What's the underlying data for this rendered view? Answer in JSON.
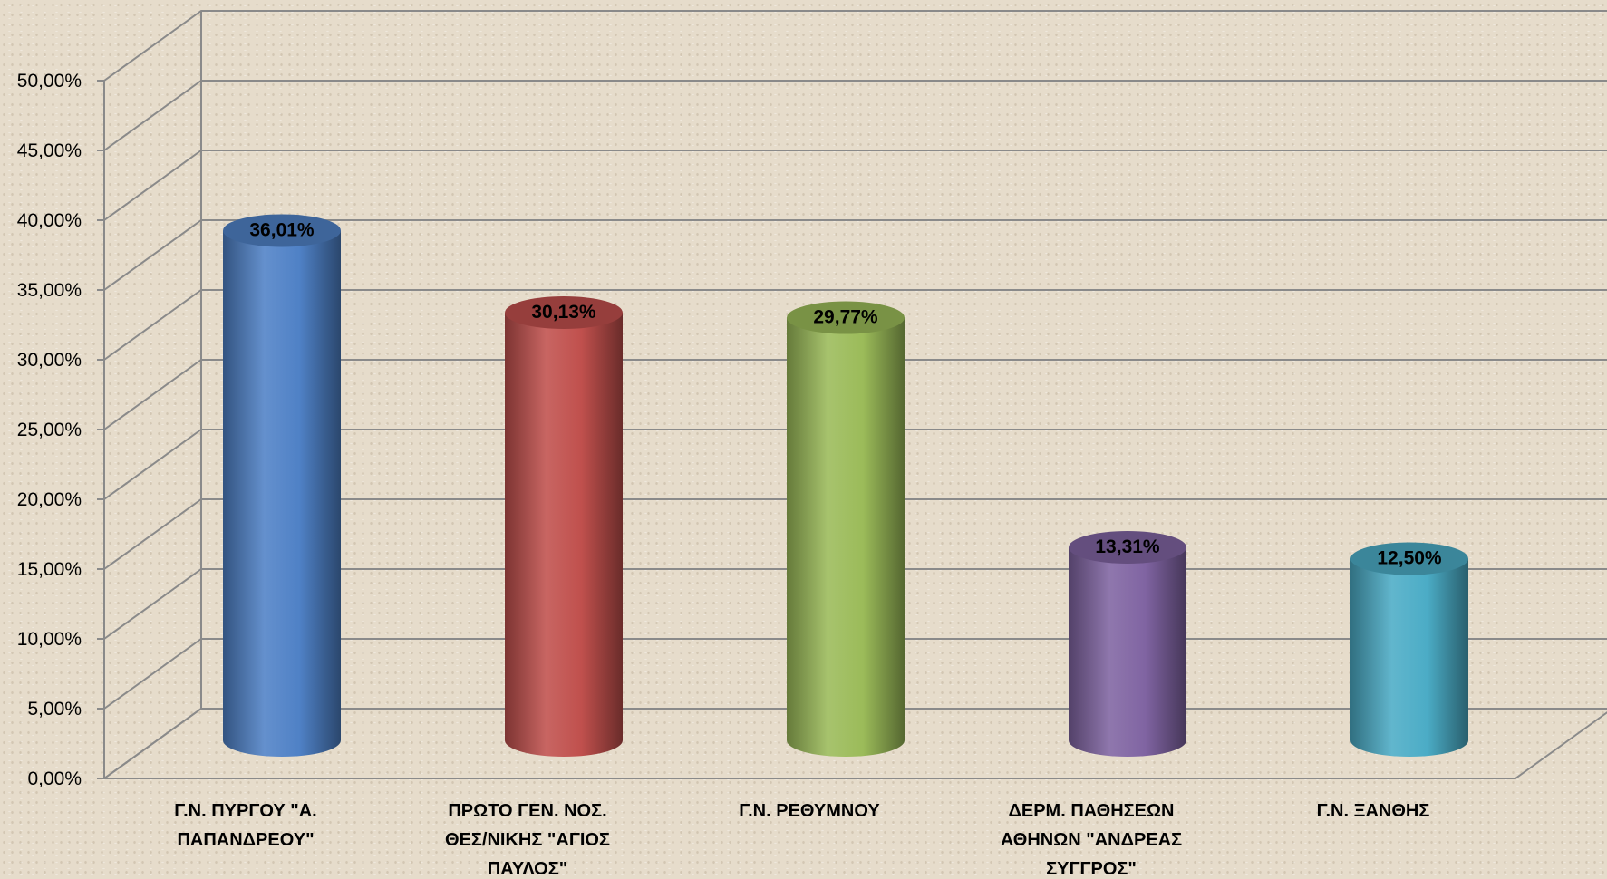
{
  "chart_data": {
    "type": "bar",
    "style": "3d-cylinder",
    "categories": [
      [
        "Γ.Ν. ΠΥΡΓΟΥ \"Α.",
        "ΠΑΠΑΝΔΡΕΟΥ\""
      ],
      [
        "ΠΡΩΤΟ ΓΕΝ. ΝΟΣ.",
        "ΘΕΣ/ΝΙΚΗΣ \"ΑΓΙΟΣ",
        "ΠΑΥΛΟΣ\""
      ],
      [
        "Γ.Ν. ΡΕΘΥΜΝΟΥ"
      ],
      [
        "ΔΕΡΜ. ΠΑΘΗΣΕΩΝ",
        "ΑΘΗΝΩΝ \"ΑΝΔΡΕΑΣ",
        "ΣΥΓΓΡΟΣ\""
      ],
      [
        "Γ.Ν. ΞΑΝΘΗΣ"
      ]
    ],
    "values": [
      36.01,
      30.13,
      29.77,
      13.31,
      12.5
    ],
    "data_labels": [
      "36,01%",
      "30,13%",
      "29,77%",
      "13,31%",
      "12,50%"
    ],
    "colors": [
      "#4f81c6",
      "#c0504d",
      "#9bbb59",
      "#8064a2",
      "#4bacc6"
    ],
    "ylim": [
      0,
      50
    ],
    "yticks": [
      "0,00%",
      "5,00%",
      "10,00%",
      "15,00%",
      "20,00%",
      "25,00%",
      "30,00%",
      "35,00%",
      "40,00%",
      "45,00%",
      "50,00%"
    ],
    "grid": true,
    "legend": "none",
    "title": "",
    "xlabel": "",
    "ylabel": ""
  }
}
